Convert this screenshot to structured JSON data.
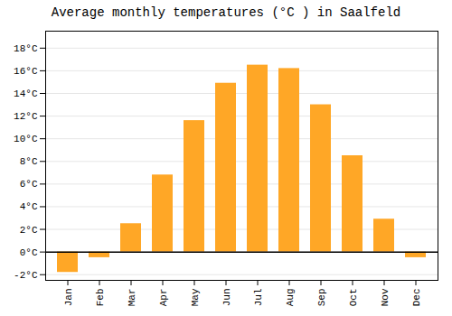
{
  "chart_data": {
    "type": "bar",
    "title": "Average monthly temperatures (°C ) in Saalfeld",
    "categories": [
      "Jan",
      "Feb",
      "Mar",
      "Apr",
      "May",
      "Jun",
      "Jul",
      "Aug",
      "Sep",
      "Oct",
      "Nov",
      "Dec"
    ],
    "values": [
      -1.8,
      -0.5,
      2.5,
      6.8,
      11.6,
      14.9,
      16.5,
      16.2,
      13.0,
      8.5,
      2.9,
      -0.5
    ],
    "color": "#FFA726",
    "ylim": [
      -2.5,
      19.5
    ],
    "yticks": [
      {
        "value": -2,
        "label": "-2°C"
      },
      {
        "value": 0,
        "label": "0°C"
      },
      {
        "value": 2,
        "label": "2°C"
      },
      {
        "value": 4,
        "label": "4°C"
      },
      {
        "value": 6,
        "label": "6°C"
      },
      {
        "value": 8,
        "label": "8°C"
      },
      {
        "value": 10,
        "label": "10°C"
      },
      {
        "value": 12,
        "label": "12°C"
      },
      {
        "value": 14,
        "label": "14°C"
      },
      {
        "value": 16,
        "label": "16°C"
      },
      {
        "value": 18,
        "label": "18°C"
      }
    ],
    "grid": true
  }
}
